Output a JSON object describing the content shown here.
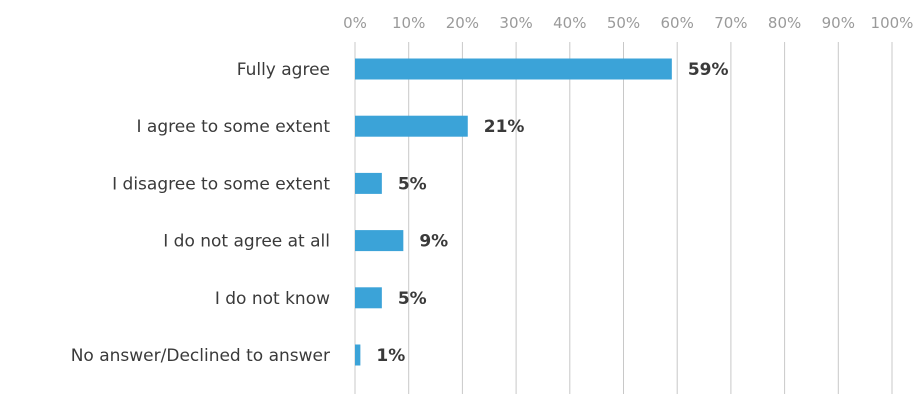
{
  "chart_data": {
    "type": "bar",
    "orientation": "horizontal",
    "title": "",
    "xlabel": "",
    "ylabel": "",
    "xlim": [
      0,
      100
    ],
    "x_ticks": [
      "0%",
      "10%",
      "20%",
      "30%",
      "40%",
      "50%",
      "60%",
      "70%",
      "80%",
      "90%",
      "100%"
    ],
    "x_axis_position": "top",
    "grid": true,
    "categories": [
      "Fully agree",
      "I agree to some extent",
      "I disagree to some extent",
      "I do not agree at all",
      "I do not know",
      "No answer/Declined to answer"
    ],
    "values": [
      59,
      21,
      5,
      9,
      5,
      1
    ],
    "data_labels": [
      "59%",
      "21%",
      "5%",
      "9%",
      "5%",
      "1%"
    ],
    "colors": {
      "bar": "#3ba3d8",
      "grid": "#c8c8c8",
      "text": "#3a3a3a",
      "tick": "#9a9a9a"
    }
  }
}
